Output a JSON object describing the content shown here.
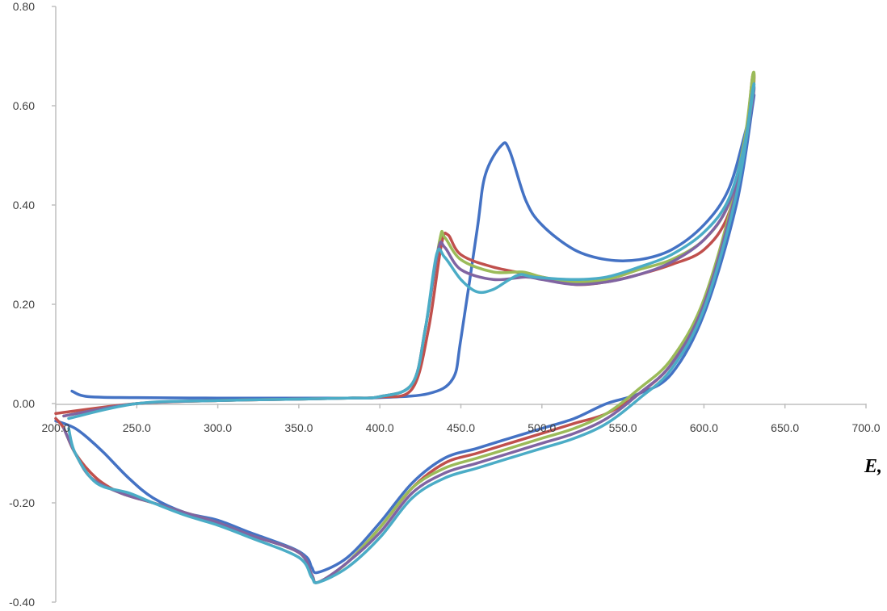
{
  "chart_data": {
    "type": "line",
    "title": "",
    "xlabel": "E,",
    "ylabel": "",
    "xlim": [
      200.0,
      700.0
    ],
    "ylim": [
      -0.4,
      0.8
    ],
    "x_ticks": [
      "200.0",
      "250.0",
      "300.0",
      "350.0",
      "400.0",
      "450.0",
      "500.0",
      "550.0",
      "600.0",
      "650.0",
      "700.0"
    ],
    "y_ticks": [
      "0.80",
      "0.60",
      "0.40",
      "0.20",
      "0.00",
      "-0.20",
      "-0.40"
    ],
    "x_tick_values": [
      200,
      250,
      300,
      350,
      400,
      450,
      500,
      550,
      600,
      650,
      700
    ],
    "y_tick_values": [
      0.8,
      0.6,
      0.4,
      0.2,
      0.0,
      -0.2,
      -0.4
    ],
    "grid": false,
    "legend": "none",
    "series": [
      {
        "color": "#4472C4",
        "x": [
          210,
          220,
          250,
          300,
          350,
          380,
          400,
          430,
          445,
          450,
          460,
          465,
          475,
          480,
          490,
          500,
          520,
          540,
          560,
          580,
          600,
          615,
          625,
          630,
          630,
          620,
          600,
          580,
          560,
          540,
          520,
          500,
          480,
          460,
          440,
          420,
          400,
          380,
          362,
          358,
          355,
          345,
          320,
          300,
          280,
          260,
          245,
          230,
          220,
          212,
          205,
          200
        ],
        "y": [
          0.025,
          0.014,
          0.012,
          0.011,
          0.011,
          0.011,
          0.012,
          0.02,
          0.05,
          0.13,
          0.35,
          0.46,
          0.52,
          0.51,
          0.41,
          0.36,
          0.31,
          0.29,
          0.29,
          0.31,
          0.36,
          0.43,
          0.54,
          0.61,
          0.6,
          0.4,
          0.18,
          0.06,
          0.02,
          0.0,
          -0.03,
          -0.05,
          -0.07,
          -0.09,
          -0.11,
          -0.16,
          -0.24,
          -0.31,
          -0.34,
          -0.33,
          -0.31,
          -0.29,
          -0.26,
          -0.235,
          -0.22,
          -0.19,
          -0.15,
          -0.1,
          -0.07,
          -0.05,
          -0.04,
          -0.035
        ]
      },
      {
        "color": "#C0504D",
        "x": [
          200,
          250,
          300,
          350,
          380,
          400,
          420,
          430,
          438,
          442,
          450,
          470,
          500,
          520,
          540,
          560,
          580,
          600,
          615,
          625,
          630,
          630,
          620,
          600,
          580,
          560,
          540,
          520,
          500,
          480,
          460,
          440,
          420,
          400,
          380,
          362,
          358,
          350,
          320,
          300,
          280,
          260,
          240,
          225,
          212,
          205,
          200
        ],
        "y": [
          -0.02,
          0.0,
          0.006,
          0.009,
          0.011,
          0.013,
          0.03,
          0.15,
          0.32,
          0.34,
          0.3,
          0.275,
          0.255,
          0.24,
          0.245,
          0.26,
          0.28,
          0.31,
          0.38,
          0.52,
          0.66,
          0.62,
          0.43,
          0.2,
          0.08,
          0.02,
          -0.02,
          -0.04,
          -0.06,
          -0.08,
          -0.1,
          -0.12,
          -0.17,
          -0.25,
          -0.32,
          -0.36,
          -0.345,
          -0.3,
          -0.265,
          -0.24,
          -0.22,
          -0.2,
          -0.18,
          -0.15,
          -0.1,
          -0.05,
          -0.03
        ]
      },
      {
        "color": "#9BBB59",
        "x": [
          205,
          250,
          300,
          350,
          380,
          400,
          420,
          428,
          437,
          440,
          450,
          470,
          488,
          500,
          520,
          540,
          560,
          580,
          600,
          615,
          625,
          630,
          630,
          620,
          600,
          580,
          560,
          540,
          520,
          500,
          480,
          460,
          440,
          420,
          400,
          380,
          362,
          358,
          350,
          320,
          300,
          280,
          260,
          240,
          222,
          212,
          205
        ],
        "y": [
          -0.025,
          0.0,
          0.006,
          0.009,
          0.011,
          0.014,
          0.04,
          0.15,
          0.33,
          0.335,
          0.29,
          0.265,
          0.265,
          0.255,
          0.245,
          0.25,
          0.27,
          0.29,
          0.33,
          0.4,
          0.53,
          0.66,
          0.63,
          0.44,
          0.21,
          0.09,
          0.03,
          -0.02,
          -0.05,
          -0.07,
          -0.09,
          -0.11,
          -0.13,
          -0.17,
          -0.25,
          -0.32,
          -0.36,
          -0.345,
          -0.3,
          -0.265,
          -0.24,
          -0.22,
          -0.2,
          -0.18,
          -0.15,
          -0.1,
          -0.05
        ]
      },
      {
        "color": "#8064A2",
        "x": [
          205,
          250,
          300,
          350,
          380,
          400,
          420,
          428,
          436,
          440,
          450,
          470,
          490,
          500,
          520,
          540,
          560,
          580,
          600,
          615,
          625,
          630,
          630,
          620,
          600,
          580,
          560,
          540,
          520,
          500,
          480,
          460,
          440,
          420,
          400,
          380,
          362,
          358,
          350,
          320,
          300,
          280,
          260,
          240,
          222,
          212,
          205
        ],
        "y": [
          -0.025,
          0.0,
          0.006,
          0.009,
          0.011,
          0.014,
          0.04,
          0.15,
          0.31,
          0.315,
          0.27,
          0.25,
          0.255,
          0.25,
          0.24,
          0.245,
          0.26,
          0.285,
          0.33,
          0.4,
          0.52,
          0.63,
          0.61,
          0.43,
          0.2,
          0.08,
          0.02,
          -0.03,
          -0.06,
          -0.08,
          -0.1,
          -0.12,
          -0.14,
          -0.18,
          -0.26,
          -0.32,
          -0.36,
          -0.345,
          -0.3,
          -0.265,
          -0.24,
          -0.22,
          -0.2,
          -0.18,
          -0.15,
          -0.1,
          -0.05
        ]
      },
      {
        "color": "#4BACC6",
        "x": [
          208,
          250,
          300,
          350,
          380,
          400,
          420,
          428,
          435,
          440,
          450,
          460,
          470,
          480,
          487,
          495,
          520,
          540,
          560,
          580,
          600,
          615,
          625,
          630,
          630,
          620,
          600,
          580,
          560,
          540,
          520,
          500,
          480,
          460,
          440,
          420,
          400,
          380,
          362,
          358,
          350,
          320,
          300,
          280,
          260,
          245,
          225,
          212,
          208
        ],
        "y": [
          -0.03,
          0.0,
          0.006,
          0.009,
          0.011,
          0.014,
          0.04,
          0.15,
          0.3,
          0.295,
          0.25,
          0.225,
          0.23,
          0.25,
          0.26,
          0.255,
          0.25,
          0.255,
          0.275,
          0.3,
          0.345,
          0.41,
          0.52,
          0.63,
          0.62,
          0.42,
          0.19,
          0.07,
          0.01,
          -0.04,
          -0.07,
          -0.09,
          -0.11,
          -0.13,
          -0.15,
          -0.19,
          -0.27,
          -0.33,
          -0.36,
          -0.35,
          -0.31,
          -0.27,
          -0.245,
          -0.225,
          -0.2,
          -0.18,
          -0.16,
          -0.1,
          -0.05
        ]
      }
    ]
  }
}
